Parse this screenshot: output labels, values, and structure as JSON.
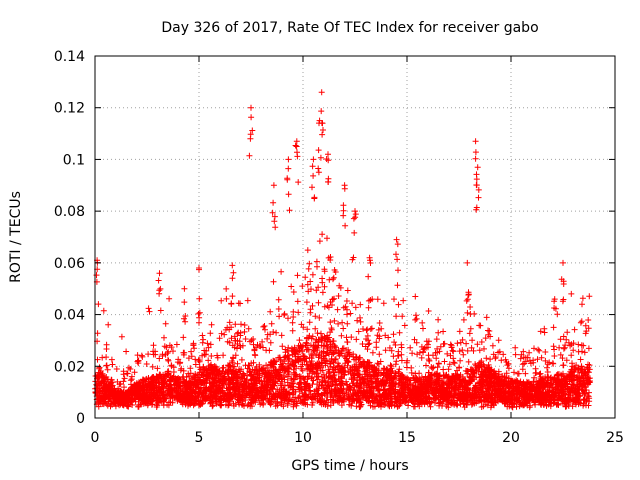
{
  "chart_data": {
    "type": "scatter",
    "title": "Day 326 of 2017, Rate Of TEC Index for receiver gabo",
    "xlabel": "GPS time / hours",
    "ylabel": "ROTI / TECUs",
    "xlim": [
      0,
      25
    ],
    "ylim": [
      0,
      0.14
    ],
    "x_ticks": [
      0,
      5,
      10,
      15,
      20,
      25
    ],
    "x_tick_labels": [
      "0",
      "5",
      "10",
      "15",
      "20",
      "25"
    ],
    "y_ticks": [
      0,
      0.02,
      0.04,
      0.06,
      0.08,
      0.1,
      0.12,
      0.14
    ],
    "y_tick_labels": [
      "0",
      "0.02",
      "0.04",
      "0.06",
      "0.08",
      "0.1",
      "0.12",
      "0.14"
    ],
    "grid": true,
    "marker": "plus",
    "color": "#ff0000",
    "x_data_range": [
      0,
      23.8
    ],
    "envelope": {
      "hours": [
        0,
        0.5,
        1,
        1.5,
        2,
        2.5,
        3,
        3.5,
        4,
        4.5,
        5,
        5.5,
        6,
        6.5,
        7,
        7.5,
        8,
        8.5,
        9,
        9.5,
        10,
        10.5,
        11,
        11.5,
        12,
        12.5,
        13,
        13.5,
        14,
        14.5,
        15,
        15.5,
        16,
        16.5,
        17,
        17.5,
        18,
        18.5,
        19,
        19.5,
        20,
        20.5,
        21,
        21.5,
        22,
        22.5,
        23,
        23.5,
        23.8
      ],
      "typical_max": [
        0.035,
        0.03,
        0.02,
        0.018,
        0.025,
        0.028,
        0.03,
        0.032,
        0.028,
        0.025,
        0.035,
        0.038,
        0.035,
        0.038,
        0.035,
        0.035,
        0.035,
        0.04,
        0.045,
        0.05,
        0.055,
        0.06,
        0.06,
        0.055,
        0.05,
        0.045,
        0.04,
        0.038,
        0.035,
        0.032,
        0.03,
        0.028,
        0.03,
        0.032,
        0.03,
        0.03,
        0.035,
        0.04,
        0.035,
        0.03,
        0.028,
        0.026,
        0.025,
        0.028,
        0.03,
        0.032,
        0.035,
        0.038,
        0.038
      ]
    },
    "notable_points": [
      {
        "x": 0.1,
        "y": 0.061
      },
      {
        "x": 3.1,
        "y": 0.056
      },
      {
        "x": 4.3,
        "y": 0.05
      },
      {
        "x": 5.0,
        "y": 0.058
      },
      {
        "x": 6.6,
        "y": 0.059
      },
      {
        "x": 7.5,
        "y": 0.12
      },
      {
        "x": 8.6,
        "y": 0.09
      },
      {
        "x": 9.3,
        "y": 0.1
      },
      {
        "x": 9.7,
        "y": 0.107
      },
      {
        "x": 10.5,
        "y": 0.1
      },
      {
        "x": 10.9,
        "y": 0.126
      },
      {
        "x": 10.8,
        "y": 0.115
      },
      {
        "x": 11.2,
        "y": 0.102
      },
      {
        "x": 12.0,
        "y": 0.09
      },
      {
        "x": 12.5,
        "y": 0.08
      },
      {
        "x": 13.2,
        "y": 0.062
      },
      {
        "x": 14.5,
        "y": 0.069
      },
      {
        "x": 15.4,
        "y": 0.047
      },
      {
        "x": 16.5,
        "y": 0.033
      },
      {
        "x": 18.3,
        "y": 0.107
      },
      {
        "x": 18.4,
        "y": 0.097
      },
      {
        "x": 17.9,
        "y": 0.06
      },
      {
        "x": 22.5,
        "y": 0.06
      },
      {
        "x": 22.1,
        "y": 0.046
      }
    ]
  }
}
